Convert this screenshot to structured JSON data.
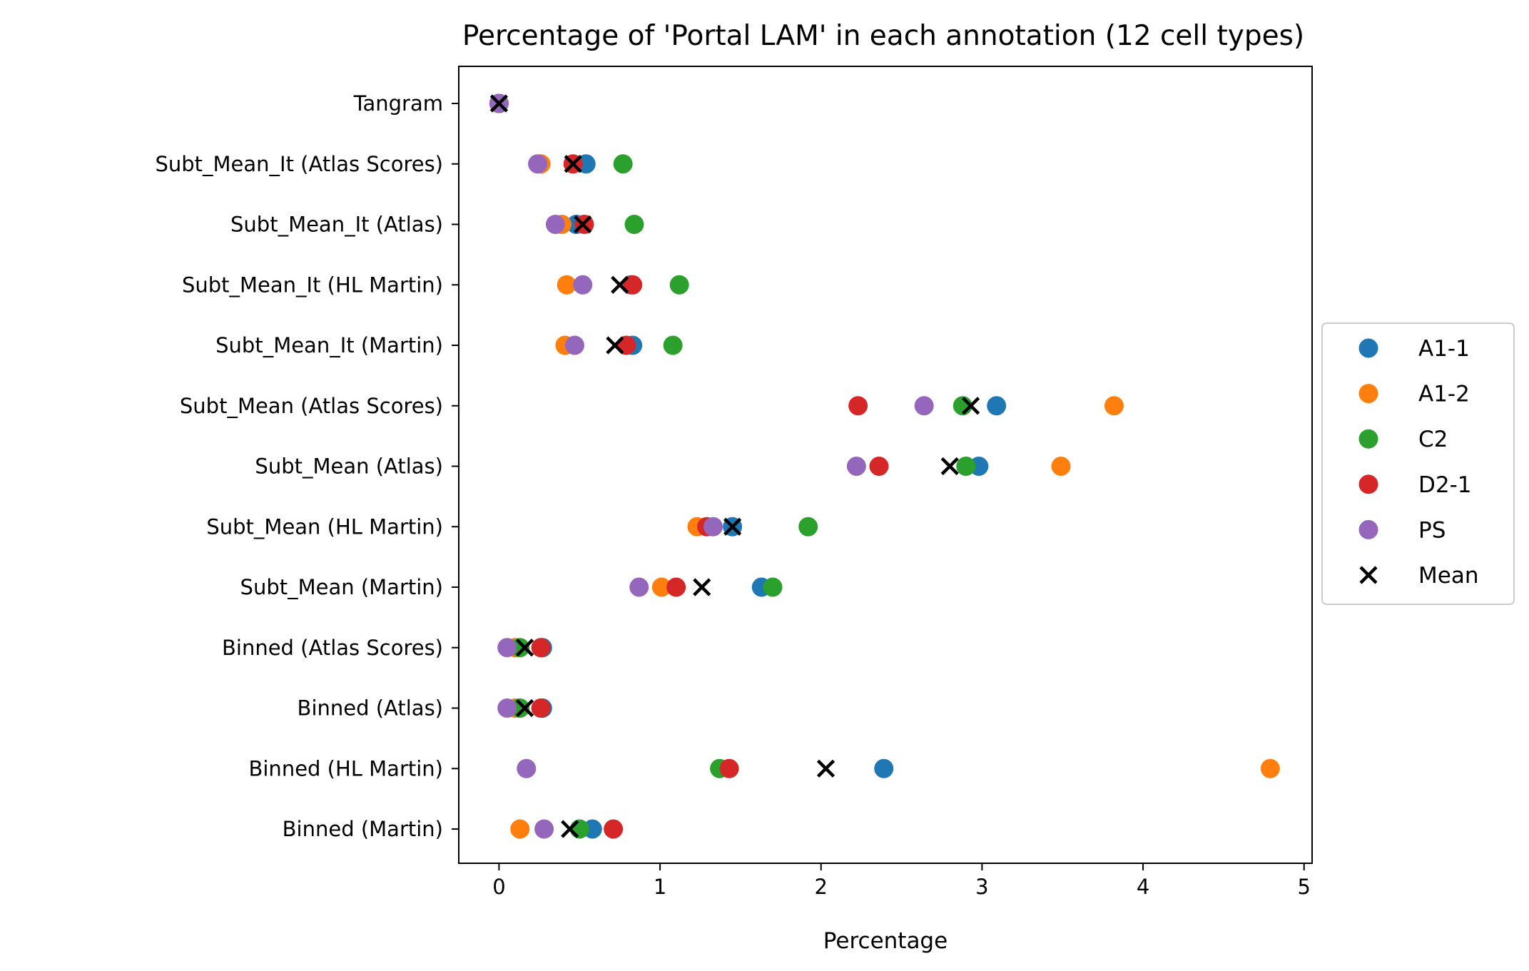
{
  "chart_data": {
    "type": "scatter",
    "orientation": "horizontal",
    "title": "Percentage of 'Portal LAM' in each annotation (12 cell types)",
    "xlabel": "Percentage",
    "ylabel": "",
    "xlim": [
      -0.25,
      5.05
    ],
    "xticks": [
      0,
      1,
      2,
      3,
      4,
      5
    ],
    "xtick_labels": [
      "0",
      "1",
      "2",
      "3",
      "4",
      "5"
    ],
    "grid": false,
    "legend_position": "center-right-outside",
    "categories": [
      "Tangram",
      "Subt_Mean_It (Atlas Scores)",
      "Subt_Mean_It (Atlas)",
      "Subt_Mean_It (HL Martin)",
      "Subt_Mean_It (Martin)",
      "Subt_Mean (Atlas Scores)",
      "Subt_Mean (Atlas)",
      "Subt_Mean (HL Martin)",
      "Subt_Mean (Martin)",
      "Binned (Atlas Scores)",
      "Binned (Atlas)",
      "Binned (HL Martin)",
      "Binned (Martin)"
    ],
    "series": [
      {
        "name": "A1-1",
        "marker": "circle",
        "color": "#1f77b4",
        "values": [
          0.0,
          0.54,
          0.48,
          0.82,
          0.83,
          3.09,
          2.98,
          1.45,
          1.63,
          0.27,
          0.27,
          2.39,
          0.58
        ]
      },
      {
        "name": "A1-2",
        "marker": "circle",
        "color": "#ff7f0e",
        "values": [
          0.0,
          0.26,
          0.39,
          0.42,
          0.41,
          3.82,
          3.49,
          1.23,
          1.01,
          0.1,
          0.1,
          4.79,
          0.13
        ]
      },
      {
        "name": "C2",
        "marker": "circle",
        "color": "#2ca02c",
        "values": [
          0.0,
          0.77,
          0.84,
          1.12,
          1.08,
          2.88,
          2.9,
          1.92,
          1.7,
          0.13,
          0.13,
          1.37,
          0.5
        ]
      },
      {
        "name": "D2-1",
        "marker": "circle",
        "color": "#d62728",
        "values": [
          0.0,
          0.46,
          0.53,
          0.83,
          0.79,
          2.23,
          2.36,
          1.29,
          1.1,
          0.26,
          0.26,
          1.43,
          0.71
        ]
      },
      {
        "name": "PS",
        "marker": "circle",
        "color": "#9467bd",
        "values": [
          0.0,
          0.24,
          0.35,
          0.52,
          0.47,
          2.64,
          2.22,
          1.33,
          0.87,
          0.05,
          0.05,
          0.17,
          0.28
        ]
      },
      {
        "name": "Mean",
        "marker": "x",
        "color": "#000000",
        "values": [
          0.0,
          0.46,
          0.52,
          0.75,
          0.72,
          2.93,
          2.8,
          1.45,
          1.26,
          0.16,
          0.16,
          2.03,
          0.44
        ]
      }
    ]
  }
}
